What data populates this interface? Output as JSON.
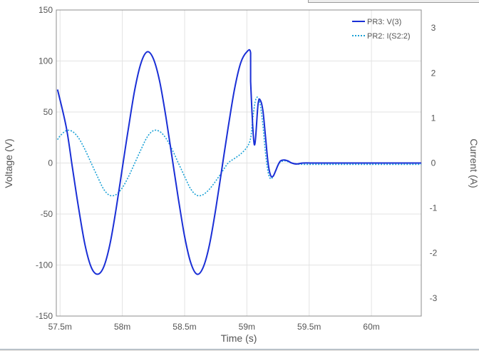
{
  "chart_data": {
    "type": "line",
    "xlabel": "Time (s)",
    "ylabel_left": "Voltage (V)",
    "ylabel_right": "Current (A)",
    "xlim": [
      0.05747,
      0.0604
    ],
    "ylim_left": [
      -150,
      150
    ],
    "ylim_right": [
      -3.4,
      3.4
    ],
    "x_ticks": [
      {
        "value": 0.0575,
        "label": "57.5m"
      },
      {
        "value": 0.058,
        "label": "58m"
      },
      {
        "value": 0.0585,
        "label": "58.5m"
      },
      {
        "value": 0.059,
        "label": "59m"
      },
      {
        "value": 0.0595,
        "label": "59.5m"
      },
      {
        "value": 0.06,
        "label": "60m"
      }
    ],
    "y_ticks_left": [
      {
        "value": 150,
        "label": "150"
      },
      {
        "value": 100,
        "label": "100"
      },
      {
        "value": 50,
        "label": "50"
      },
      {
        "value": 0,
        "label": "0"
      },
      {
        "value": -50,
        "label": "-50"
      },
      {
        "value": -100,
        "label": "-100"
      },
      {
        "value": -150,
        "label": "-150"
      }
    ],
    "y_ticks_right": [
      {
        "value": 3,
        "label": "3"
      },
      {
        "value": 2,
        "label": "2"
      },
      {
        "value": 1,
        "label": "1"
      },
      {
        "value": 0,
        "label": "0"
      },
      {
        "value": -1,
        "label": "-1"
      },
      {
        "value": -2,
        "label": "-2"
      },
      {
        "value": -3,
        "label": "-3"
      }
    ],
    "grid": true,
    "legend_position": "top-right",
    "series": [
      {
        "name": "PR3: V(3)",
        "axis": "left",
        "color": "#1a2fd6",
        "style": "solid",
        "points": [
          [
            0.05748,
            72
          ],
          [
            0.05755,
            35
          ],
          [
            0.0576,
            -5
          ],
          [
            0.05765,
            -45
          ],
          [
            0.0577,
            -80
          ],
          [
            0.05775,
            -102
          ],
          [
            0.0578,
            -109
          ],
          [
            0.05785,
            -102
          ],
          [
            0.0579,
            -80
          ],
          [
            0.05795,
            -45
          ],
          [
            0.058,
            -5
          ],
          [
            0.05805,
            35
          ],
          [
            0.0581,
            72
          ],
          [
            0.05815,
            98
          ],
          [
            0.0582,
            109
          ],
          [
            0.05825,
            102
          ],
          [
            0.0583,
            80
          ],
          [
            0.05835,
            45
          ],
          [
            0.0584,
            5
          ],
          [
            0.05845,
            -35
          ],
          [
            0.0585,
            -72
          ],
          [
            0.05855,
            -98
          ],
          [
            0.0586,
            -109
          ],
          [
            0.05865,
            -102
          ],
          [
            0.0587,
            -80
          ],
          [
            0.05875,
            -45
          ],
          [
            0.0588,
            -5
          ],
          [
            0.05885,
            35
          ],
          [
            0.0589,
            72
          ],
          [
            0.05895,
            98
          ],
          [
            0.059,
            109
          ],
          [
            0.05903,
            108
          ],
          [
            0.05903,
            80
          ],
          [
            0.05906,
            18
          ],
          [
            0.05909,
            58
          ],
          [
            0.05911,
            61
          ],
          [
            0.05913,
            50
          ],
          [
            0.05915,
            25
          ],
          [
            0.05917,
            0
          ],
          [
            0.05919,
            -12
          ],
          [
            0.05921,
            -13
          ],
          [
            0.05923,
            -8
          ],
          [
            0.05925,
            -2
          ],
          [
            0.05927,
            2
          ],
          [
            0.0593,
            3
          ],
          [
            0.05933,
            2
          ],
          [
            0.05936,
            0
          ],
          [
            0.0594,
            -1
          ],
          [
            0.05945,
            0
          ],
          [
            0.05955,
            0
          ],
          [
            0.0597,
            0
          ],
          [
            0.06,
            0
          ],
          [
            0.0604,
            0
          ]
        ]
      },
      {
        "name": "PR2: I(S2:2)",
        "axis": "right",
        "color": "#1ba1d6",
        "style": "dotted",
        "points": [
          [
            0.05748,
            0.52
          ],
          [
            0.0575,
            0.6
          ],
          [
            0.05755,
            0.72
          ],
          [
            0.0576,
            0.7
          ],
          [
            0.05765,
            0.55
          ],
          [
            0.0577,
            0.3
          ],
          [
            0.05775,
            0.0
          ],
          [
            0.0578,
            -0.3
          ],
          [
            0.05785,
            -0.58
          ],
          [
            0.0579,
            -0.72
          ],
          [
            0.05795,
            -0.7
          ],
          [
            0.058,
            -0.55
          ],
          [
            0.05805,
            -0.3
          ],
          [
            0.0581,
            0.0
          ],
          [
            0.05815,
            0.3
          ],
          [
            0.0582,
            0.58
          ],
          [
            0.05825,
            0.72
          ],
          [
            0.0583,
            0.7
          ],
          [
            0.05835,
            0.55
          ],
          [
            0.0584,
            0.3
          ],
          [
            0.05845,
            0.0
          ],
          [
            0.0585,
            -0.3
          ],
          [
            0.05855,
            -0.58
          ],
          [
            0.0586,
            -0.72
          ],
          [
            0.05865,
            -0.7
          ],
          [
            0.0587,
            -0.58
          ],
          [
            0.05875,
            -0.4
          ],
          [
            0.0588,
            -0.2
          ],
          [
            0.05885,
            0.0
          ],
          [
            0.0589,
            0.1
          ],
          [
            0.05895,
            0.2
          ],
          [
            0.059,
            0.35
          ],
          [
            0.05903,
            0.55
          ],
          [
            0.05905,
            1.05
          ],
          [
            0.05907,
            1.4
          ],
          [
            0.05909,
            1.45
          ],
          [
            0.05911,
            1.25
          ],
          [
            0.05913,
            0.8
          ],
          [
            0.05915,
            0.2
          ],
          [
            0.05917,
            -0.2
          ],
          [
            0.05919,
            -0.35
          ],
          [
            0.05921,
            -0.3
          ],
          [
            0.05923,
            -0.18
          ],
          [
            0.05925,
            -0.05
          ],
          [
            0.05927,
            0.02
          ],
          [
            0.0593,
            0.05
          ],
          [
            0.05933,
            0.03
          ],
          [
            0.05936,
            0.0
          ],
          [
            0.0594,
            -0.02
          ],
          [
            0.05945,
            -0.03
          ],
          [
            0.05955,
            -0.03
          ],
          [
            0.0597,
            -0.03
          ],
          [
            0.06,
            -0.03
          ],
          [
            0.0604,
            -0.03
          ]
        ]
      }
    ]
  }
}
